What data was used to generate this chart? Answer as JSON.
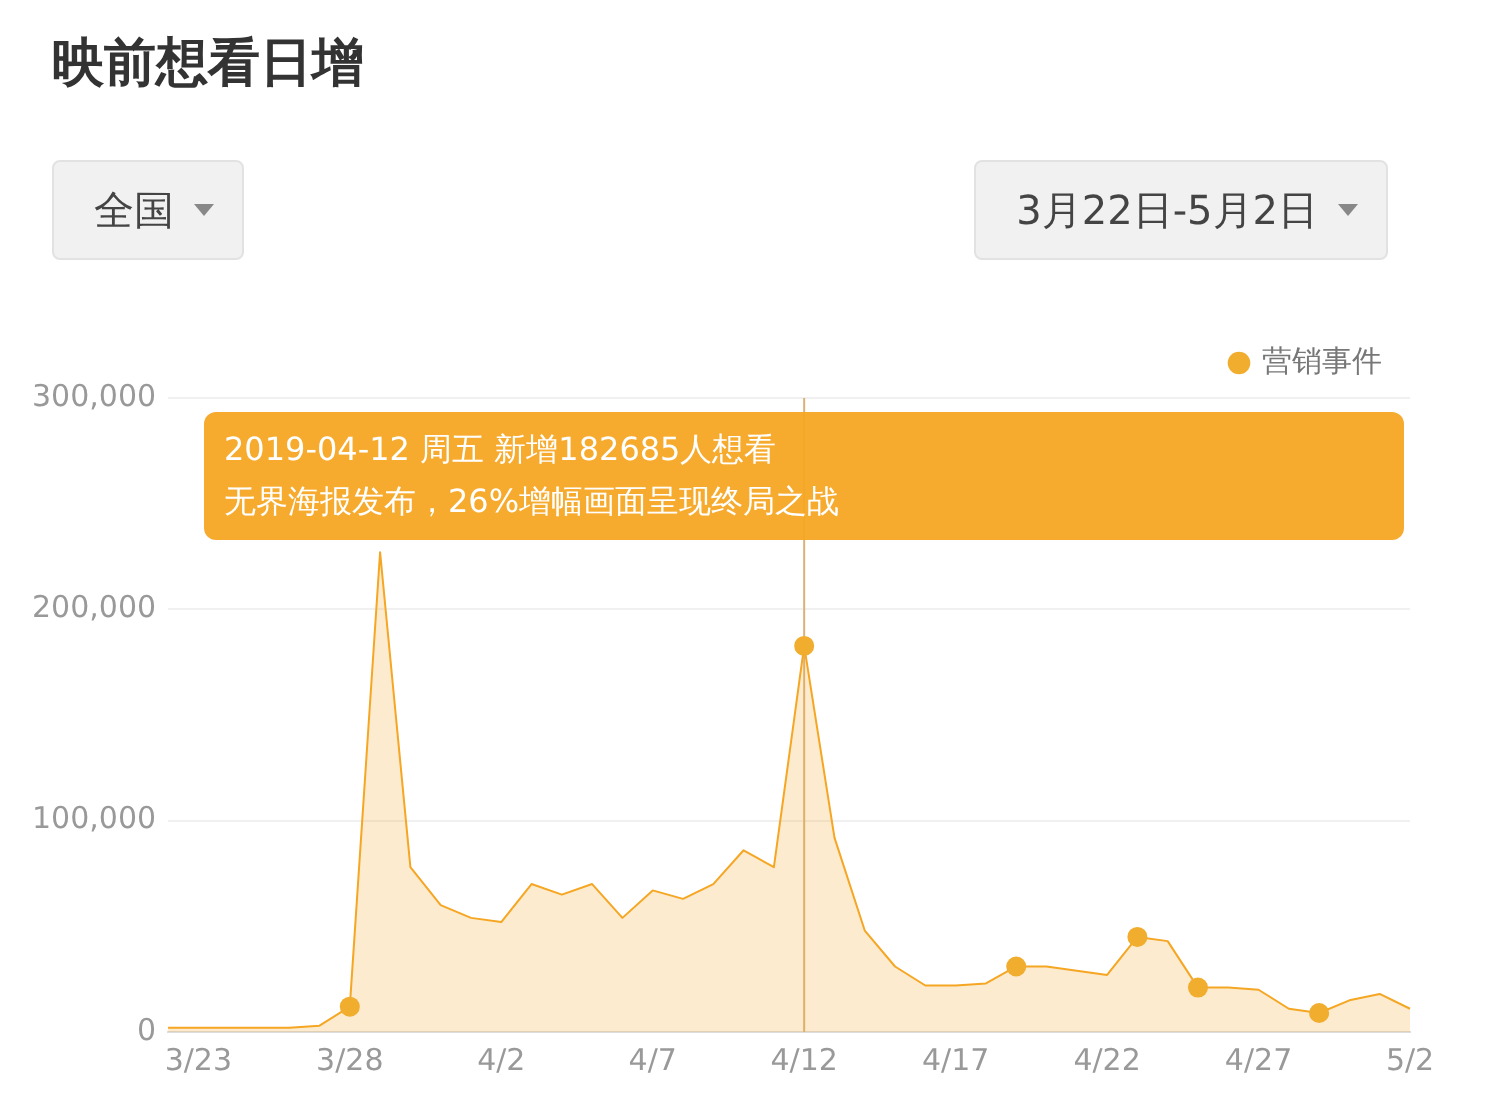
{
  "chart_data": {
    "type": "area",
    "title": "映前想看日增",
    "categories": [
      null,
      "3/23",
      null,
      null,
      null,
      null,
      "3/28",
      null,
      null,
      null,
      null,
      "4/2",
      null,
      null,
      null,
      null,
      "4/7",
      null,
      null,
      null,
      null,
      "4/12",
      null,
      null,
      null,
      null,
      "4/17",
      null,
      null,
      null,
      null,
      "4/22",
      null,
      null,
      null,
      null,
      "4/27",
      null,
      null,
      null,
      null,
      "5/2"
    ],
    "series": [
      {
        "color": "#f5a623",
        "values": [
          2000,
          2000,
          2000,
          2000,
          2000,
          3000,
          12000,
          227000,
          78000,
          60000,
          54000,
          52000,
          70000,
          65000,
          70000,
          54000,
          67000,
          63000,
          70000,
          86000,
          78000,
          182685,
          92000,
          48000,
          31000,
          22000,
          22000,
          23000,
          31000,
          31000,
          29000,
          27000,
          45000,
          43000,
          21000,
          21000,
          20000,
          11000,
          9000,
          15000,
          18000,
          11000
        ]
      },
      {
        "type": "scatter",
        "name": "营销事件",
        "color": "#f0ad2e",
        "marker": "circle",
        "values": [
          null,
          null,
          null,
          null,
          null,
          null,
          12000,
          null,
          null,
          null,
          null,
          null,
          null,
          null,
          null,
          null,
          null,
          null,
          null,
          null,
          null,
          182685,
          null,
          null,
          null,
          null,
          null,
          null,
          31000,
          null,
          null,
          null,
          45000,
          null,
          21000,
          null,
          null,
          null,
          9000,
          null,
          null,
          null
        ]
      }
    ],
    "ylim": [
      0,
      300000
    ],
    "yticks": [
      {
        "value": 0,
        "label": "0"
      },
      {
        "value": 100000,
        "label": "100,000"
      },
      {
        "value": 200000,
        "label": "200,000"
      },
      {
        "value": 300000,
        "label": "300,000"
      }
    ],
    "grid": "y",
    "legend": "top right",
    "marker": "none",
    "ref_lines": [
      {
        "axis": "x",
        "value": "4/12",
        "color": "#d9b27a"
      }
    ],
    "annotations": [
      "全国",
      "3月22日-5月2日",
      "2019-04-12 周五 新增182685人想看",
      "无界海报发布，26%增幅画面呈现终局之战"
    ]
  }
}
